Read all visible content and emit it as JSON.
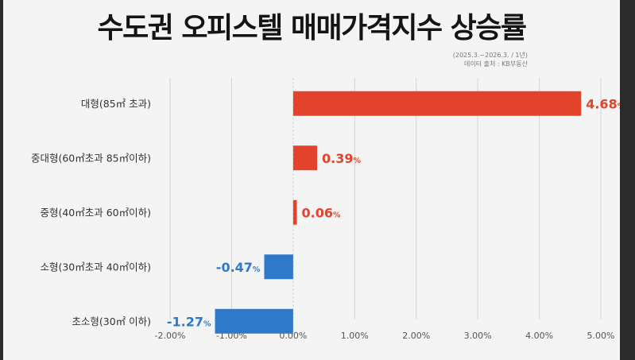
{
  "title": "수도권 오피스텔 매매가격지수 상승률",
  "period_note": "(2025.3.~2026.3. / 1년)",
  "source_note": "데이터 출처 : KB부동산",
  "colors": {
    "positive": "#e3422b",
    "negative": "#2f79c9",
    "grid": "#d4d4d4",
    "background": "#f4f4f4"
  },
  "chart_data": {
    "type": "bar",
    "orientation": "horizontal",
    "title": "수도권 오피스텔 매매가격지수 상승률",
    "categories": [
      "대형(85㎡ 초과)",
      "중대형(60㎡초과 85㎡이하)",
      "중형(40㎡초과 60㎡이하)",
      "소형(30㎡초과 40㎡이하)",
      "초소형(30㎡ 이하)"
    ],
    "values": [
      4.68,
      0.39,
      0.06,
      -0.47,
      -1.27
    ],
    "value_labels": [
      "4.68",
      "0.39",
      "0.06",
      "-0.47",
      "-1.27"
    ],
    "value_unit": "%",
    "x_ticks": [
      "-2.00%",
      "-1.00%",
      "0.00%",
      "1.00%",
      "2.00%",
      "3.00%",
      "4.00%",
      "5.00%"
    ],
    "xlim": [
      -2,
      5
    ],
    "grid": true,
    "xlabel": "",
    "ylabel": ""
  }
}
